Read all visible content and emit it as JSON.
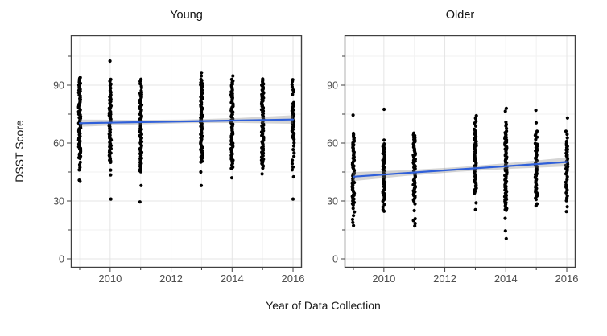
{
  "figure": {
    "xlabel": "Year of Data Collection",
    "ylabel": "DSST Score"
  },
  "colors": {
    "background": "#ffffff",
    "point": "#000000",
    "smooth_line": "#2f5fd9",
    "ribbon": "rgba(125,125,125,0.32)",
    "grid_major": "#e4e4e4",
    "grid_minor": "#f2f2f2",
    "panel_border": "#404040",
    "tick": "#404040",
    "tick_label": "#4d4d4d"
  },
  "chart_data": [
    {
      "type": "scatter",
      "title": "Young",
      "xlim": [
        2008.71,
        2016.29
      ],
      "ylim": [
        -4.58,
        115.83
      ],
      "x_major_ticks": [
        2010,
        2012,
        2014,
        2016
      ],
      "x_minor_ticks": [
        2009,
        2011,
        2013,
        2015
      ],
      "y_major_ticks": [
        0,
        30,
        60,
        90
      ],
      "y_minor_ticks": [
        15,
        45,
        75,
        105
      ],
      "grid": true,
      "points": {
        "2009": {
          "segments": [
            [
              52,
              94,
              70
            ],
            [
              46,
              50,
              4
            ]
          ],
          "outliers": [
            40.8,
            40.2
          ]
        },
        "2010": {
          "segments": [
            [
              85,
              93,
              8
            ],
            [
              50,
              84,
              57
            ]
          ],
          "outliers": [
            102.5,
            46,
            43.5,
            31
          ]
        },
        "2011": {
          "segments": [
            [
              88.5,
              93,
              5
            ],
            [
              45,
              87,
              70
            ]
          ],
          "outliers": [
            38,
            29.5
          ]
        },
        "2013": {
          "segments": [
            [
              50,
              93,
              72
            ]
          ],
          "outliers": [
            96.5,
            94.8,
            45,
            38
          ]
        },
        "2014": {
          "segments": [
            [
              47,
              93,
              77
            ]
          ],
          "outliers": [
            94.8,
            42
          ]
        },
        "2015": {
          "segments": [
            [
              48,
              93,
              75
            ]
          ],
          "outliers": [
            47,
            44
          ]
        },
        "2016": {
          "segments": [
            [
              85,
              93,
              7
            ],
            [
              62,
              81,
              32
            ],
            [
              46,
              60,
              9
            ]
          ],
          "outliers": [
            42.5,
            31
          ]
        }
      },
      "smooth": {
        "x": [
          2009,
          2010.75,
          2012.5,
          2014.25,
          2016
        ],
        "y": [
          70.3,
          70.8,
          71.25,
          71.7,
          72.2
        ],
        "ribbon_halfwidth": [
          1.9,
          1.2,
          0.9,
          1.3,
          2.2
        ]
      }
    },
    {
      "type": "scatter",
      "title": "Older",
      "xlim": [
        2008.71,
        2016.29
      ],
      "ylim": [
        -4.58,
        115.83
      ],
      "x_major_ticks": [
        2010,
        2012,
        2014,
        2016
      ],
      "x_minor_ticks": [
        2009,
        2011,
        2013,
        2015
      ],
      "y_major_ticks": [
        0,
        30,
        60,
        90
      ],
      "y_minor_ticks": [
        15,
        45,
        75,
        105
      ],
      "grid": true,
      "points": {
        "2009": {
          "segments": [
            [
              28,
              65,
              62
            ],
            [
              17,
              26,
              6
            ]
          ],
          "outliers": [
            74.5
          ]
        },
        "2010": {
          "segments": [
            [
              30,
              59.5,
              50
            ],
            [
              24.5,
              28,
              4
            ]
          ],
          "outliers": [
            77.5,
            61.5
          ]
        },
        "2011": {
          "segments": [
            [
              30,
              65,
              59
            ],
            [
              17,
              21,
              4
            ]
          ],
          "outliers": [
            28.5,
            25
          ]
        },
        "2013": {
          "segments": [
            [
              34,
              67,
              55
            ],
            [
              69,
              74,
              5
            ]
          ],
          "outliers": [
            29,
            25.5
          ]
        },
        "2014": {
          "segments": [
            [
              25,
              66,
              69
            ],
            [
              67.5,
              71,
              4
            ]
          ],
          "outliers": [
            78,
            76.5,
            21,
            14.5,
            10.5
          ]
        },
        "2015": {
          "segments": [
            [
              31,
              60,
              49
            ],
            [
              62,
              66,
              5
            ]
          ],
          "outliers": [
            77,
            70.5,
            28.5,
            27.5
          ]
        },
        "2016": {
          "segments": [
            [
              45,
              60,
              26
            ],
            [
              30,
              44,
              11
            ],
            [
              61,
              66,
              4
            ]
          ],
          "outliers": [
            73,
            27,
            24.5
          ]
        }
      },
      "smooth": {
        "x": [
          2009,
          2010.75,
          2012.5,
          2014.25,
          2016
        ],
        "y": [
          42.6,
          44.5,
          46.4,
          48.3,
          50.2
        ],
        "ribbon_halfwidth": [
          2.3,
          1.5,
          1.2,
          1.6,
          2.3
        ]
      }
    }
  ]
}
